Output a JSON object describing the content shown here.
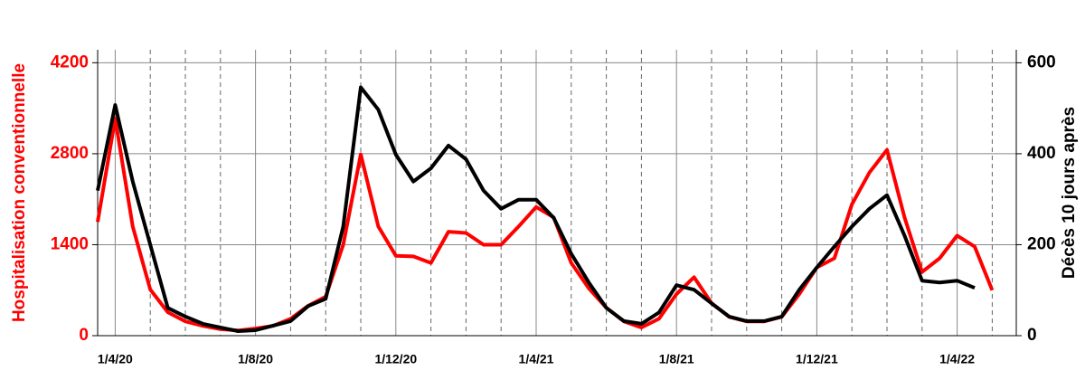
{
  "chart_data": {
    "type": "line",
    "y_label": "Hospitalisation conventionnelle",
    "y2_label": "Décès 10 jours après",
    "categories": [
      null,
      "1/4/20",
      null,
      null,
      null,
      null,
      null,
      null,
      null,
      "1/8/20",
      null,
      null,
      null,
      null,
      null,
      null,
      null,
      "1/12/20",
      null,
      null,
      null,
      null,
      null,
      null,
      null,
      "1/4/21",
      null,
      null,
      null,
      null,
      null,
      null,
      null,
      "1/8/21",
      null,
      null,
      null,
      null,
      null,
      null,
      null,
      "1/12/21",
      null,
      null,
      null,
      null,
      null,
      null,
      null,
      "1/4/22",
      null,
      null
    ],
    "series": [
      {
        "name": "Hospitalisation conventionnelle",
        "color": "#ff0000",
        "axis": "y",
        "values": [
          1750,
          3340,
          1680,
          710,
          360,
          220,
          150,
          100,
          80,
          110,
          150,
          260,
          460,
          600,
          1400,
          2790,
          1680,
          1230,
          1220,
          1120,
          1600,
          1580,
          1400,
          1400,
          1680,
          1980,
          1820,
          1120,
          730,
          430,
          220,
          125,
          260,
          640,
          900,
          500,
          290,
          220,
          220,
          290,
          640,
          1050,
          1190,
          2020,
          2510,
          2860,
          1820,
          980,
          1190,
          1540,
          1370,
          700
        ]
      },
      {
        "name": "Décès 10 jours après",
        "color": "#000000",
        "axis": "y2",
        "values": [
          319,
          507,
          339,
          200,
          61,
          42,
          26,
          18,
          10,
          12,
          22,
          32,
          65,
          81,
          240,
          546,
          497,
          398,
          339,
          368,
          418,
          388,
          319,
          279,
          299,
          299,
          259,
          180,
          117,
          61,
          32,
          26,
          51,
          111,
          101,
          71,
          42,
          32,
          32,
          42,
          101,
          150,
          196,
          240,
          279,
          309,
          220,
          121,
          117,
          121,
          105,
          null
        ]
      }
    ],
    "ylim": [
      0,
      4400
    ],
    "yticks": [
      0,
      1400,
      2800,
      4200
    ],
    "y2lim": [
      0,
      628.6
    ],
    "y2ticks": [
      0,
      200,
      400,
      600
    ],
    "grid": true
  }
}
